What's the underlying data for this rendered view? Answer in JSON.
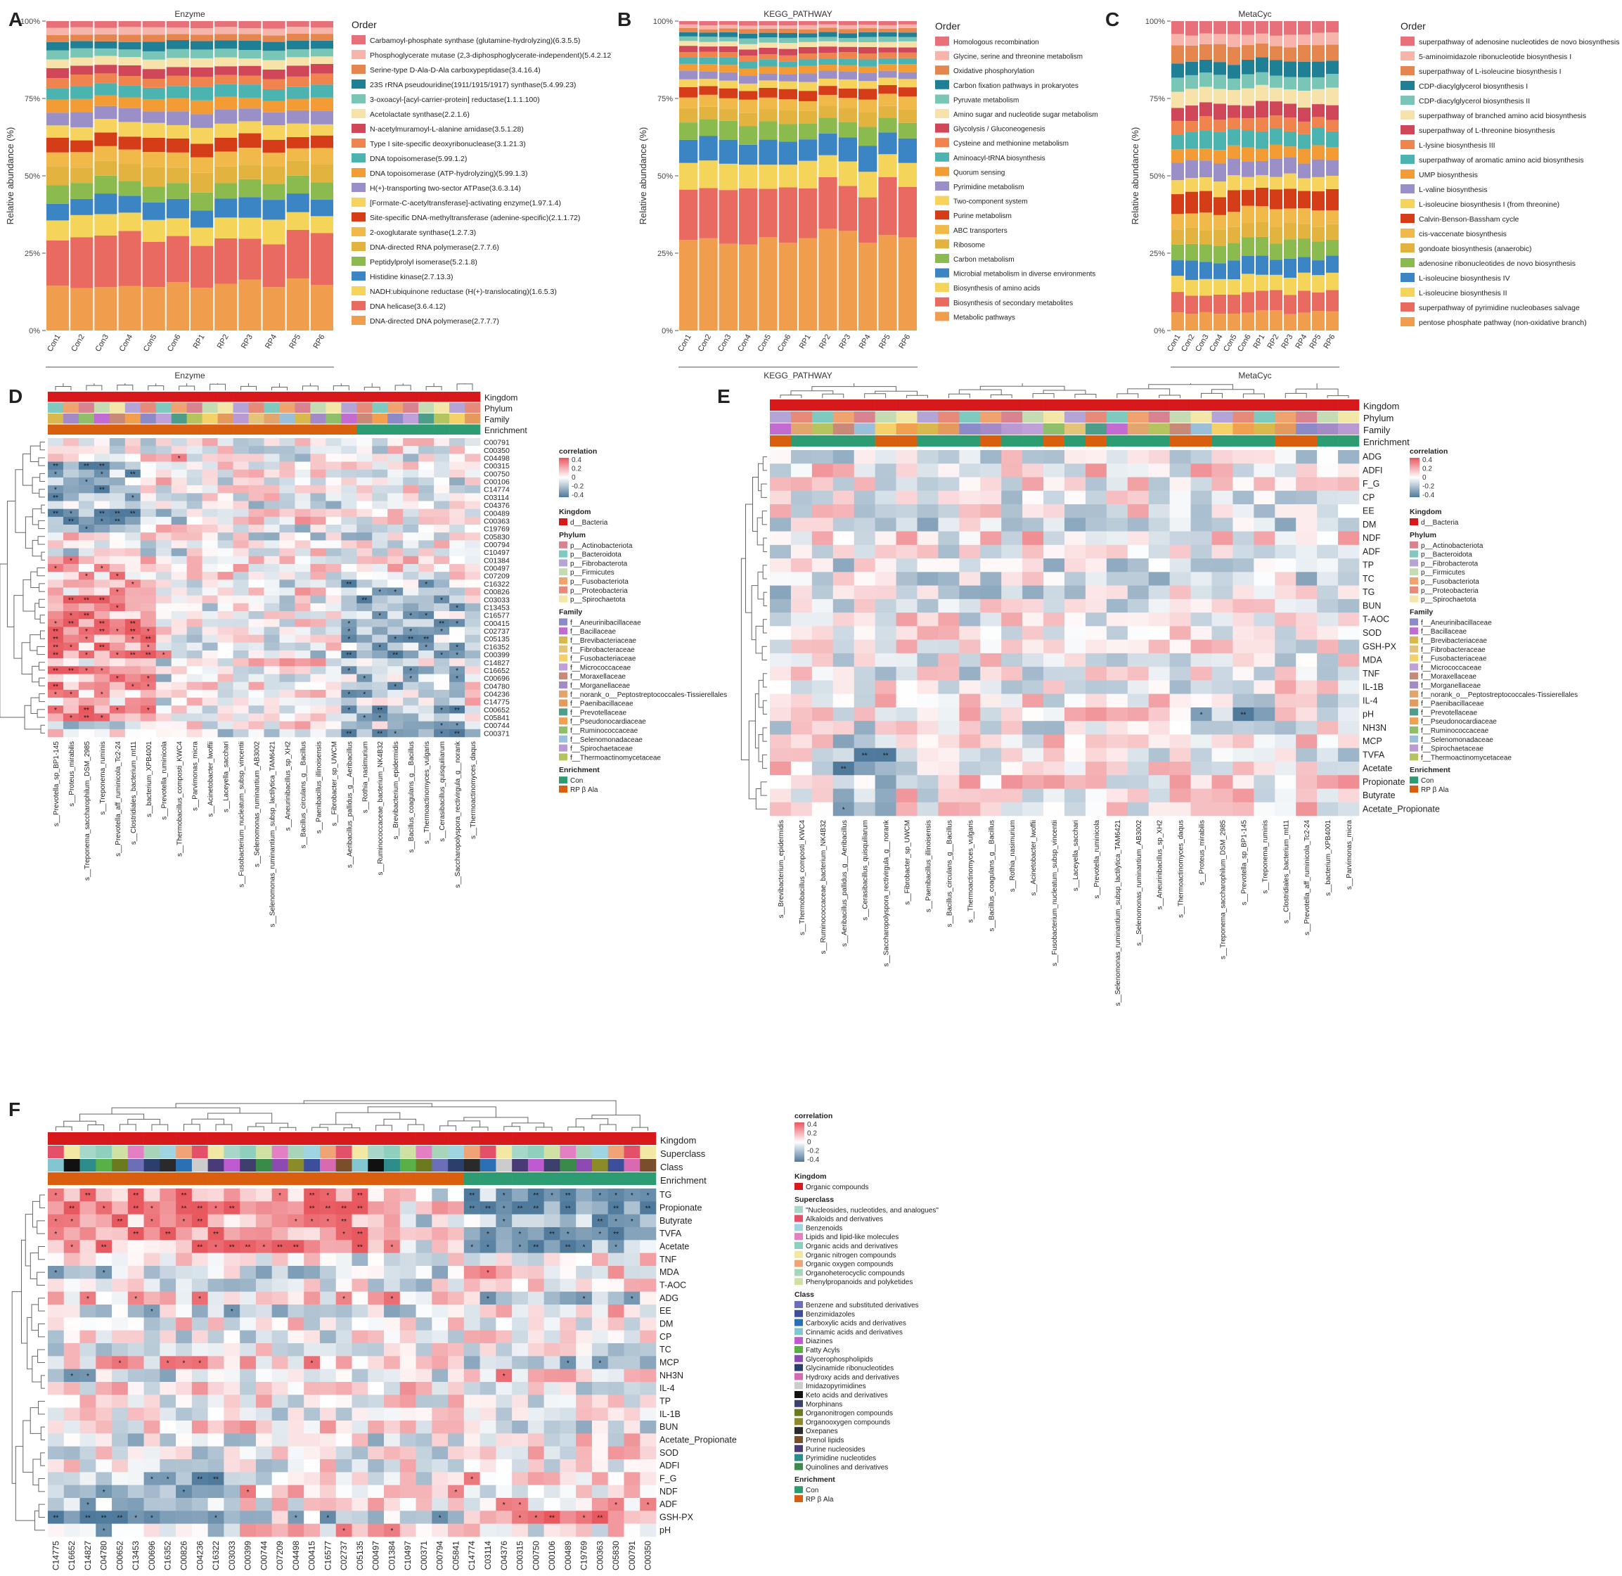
{
  "panel_letters": [
    "A",
    "B",
    "C",
    "D",
    "E",
    "F"
  ],
  "panelA": {
    "title": "Enzyme",
    "xlabel": "Enzyme",
    "ylabel": "Relative abundance (%)",
    "legend_title": "Order",
    "samples": [
      "Con1",
      "Con2",
      "Con3",
      "Con4",
      "Con5",
      "Con6",
      "RP1",
      "RP2",
      "RP3",
      "RP4",
      "RP5",
      "RP6"
    ],
    "yticks": [
      "0%",
      "25%",
      "50%",
      "75%",
      "100%"
    ],
    "legend": [
      "Carbamoyl-phosphate synthase (glutamine-hydrolyzing)(6.3.5.5)",
      "Phosphoglycerate mutase (2,3-diphosphoglycerate-independent)(5.4.2.12)",
      "Serine-type D-Ala-D-Ala carboxypeptidase(3.4.16.4)",
      "23S rRNA pseudouridine(1911/1915/1917) synthase(5.4.99.23)",
      "3-oxoacyl-[acyl-carrier-protein] reductase(1.1.1.100)",
      "Acetolactate synthase(2.2.1.6)",
      "N-acetylmuramoyl-L-alanine amidase(3.5.1.28)",
      "Type I site-specific deoxyribonuclease(3.1.21.3)",
      "DNA topoisomerase(5.99.1.2)",
      "DNA topoisomerase (ATP-hydrolyzing)(5.99.1.3)",
      "H(+)-transporting two-sector ATPase(3.6.3.14)",
      "[Formate-C-acetyltransferase]-activating enzyme(1.97.1.4)",
      "Site-specific DNA-methyltransferase (adenine-specific)(2.1.1.72)",
      "2-oxoglutarate synthase(1.2.7.3)",
      "DNA-directed RNA polymerase(2.7.7.6)",
      "Peptidylprolyl isomerase(5.2.1.8)",
      "Histidine kinase(2.7.13.3)",
      "NADH:ubiquinone reductase (H(+)-translocating)(1.6.5.3)",
      "DNA helicase(3.6.4.12)",
      "DNA-directed DNA polymerase(2.7.7.7)"
    ]
  },
  "panelB": {
    "title": "KEGG_PATHWAY",
    "xlabel": "KEGG_PATHWAY",
    "ylabel": "Relative abundance (%)",
    "legend_title": "Order",
    "samples": [
      "Con1",
      "Con2",
      "Con3",
      "Con4",
      "Con5",
      "Con6",
      "RP1",
      "RP2",
      "RP3",
      "RP4",
      "RP5",
      "RP6"
    ],
    "yticks": [
      "0%",
      "25%",
      "50%",
      "75%",
      "100%"
    ],
    "legend": [
      "Homologous recombination",
      "Glycine, serine and threonine metabolism",
      "Oxidative phosphorylation",
      "Carbon fixation pathways in prokaryotes",
      "Pyruvate metabolism",
      "Amino sugar and nucleotide sugar metabolism",
      "Glycolysis / Gluconeogenesis",
      "Cysteine and methionine metabolism",
      "Aminoacyl-tRNA biosynthesis",
      "Quorum sensing",
      "Pyrimidine metabolism",
      "Two-component system",
      "Purine metabolism",
      "ABC transporters",
      "Ribosome",
      "Carbon metabolism",
      "Microbial metabolism in diverse environments",
      "Biosynthesis of amino acids",
      "Biosynthesis of secondary metabolites",
      "Metabolic pathways"
    ]
  },
  "panelC": {
    "title": "MetaCyc",
    "xlabel": "MetaCyc",
    "ylabel": "Relative abundance (%)",
    "legend_title": "Order",
    "samples": [
      "Con1",
      "Con2",
      "Con3",
      "Con4",
      "Con5",
      "Con6",
      "RP1",
      "RP2",
      "RP3",
      "RP4",
      "RP5",
      "RP6"
    ],
    "yticks": [
      "0%",
      "25%",
      "50%",
      "75%",
      "100%"
    ],
    "legend": [
      "superpathway of adenosine nucleotides de novo biosynthesis I",
      "5-aminoimidazole ribonucleotide biosynthesis I",
      "superpathway of L-isoleucine biosynthesis I",
      "CDP-diacylglycerol biosynthesis I",
      "CDP-diacylglycerol biosynthesis II",
      "superpathway of branched amino acid biosynthesis",
      "superpathway of L-threonine biosynthesis",
      "L-lysine biosynthesis III",
      "superpathway of aromatic amino acid biosynthesis",
      "UMP biosynthesis",
      "L-valine biosynthesis",
      "L-isoleucine biosynthesis I (from threonine)",
      "Calvin-Benson-Bassham cycle",
      "cis-vaccenate biosynthesis",
      "gondoate biosynthesis (anaerobic)",
      "adenosine ribonucleotides de novo biosynthesis",
      "L-isoleucine biosynthesis IV",
      "L-isoleucine biosynthesis II",
      "superpathway of pyrimidine nucleobases salvage",
      "pentose phosphate pathway (non-oxidative branch)"
    ]
  },
  "palette20": [
    "#e8707a",
    "#f6b4ab",
    "#e4864d",
    "#1f7f95",
    "#79c6b7",
    "#f7e3a9",
    "#d0475a",
    "#f0844e",
    "#4bb3b0",
    "#f39b35",
    "#9a8fc7",
    "#f6d35c",
    "#d53d18",
    "#f0b949",
    "#e2b43f",
    "#8bbb4f",
    "#3c85c4",
    "#f5d45a",
    "#e96a60",
    "#f09e4d"
  ],
  "panelD": {
    "annot_labels": [
      "Kingdom",
      "Phylum",
      "Family",
      "Enrichment"
    ],
    "rows": [
      "C00791",
      "C00350",
      "C04498",
      "C00315",
      "C00750",
      "C00106",
      "C14774",
      "C03114",
      "C04376",
      "C00489",
      "C00363",
      "C19769",
      "C05830",
      "C00794",
      "C10497",
      "C01384",
      "C00497",
      "C07209",
      "C16322",
      "C00826",
      "C03033",
      "C13453",
      "C16577",
      "C00415",
      "C02737",
      "C05135",
      "C16352",
      "C00399",
      "C14827",
      "C16652",
      "C00696",
      "C04780",
      "C04236",
      "C14775",
      "C00652",
      "C05841",
      "C00744",
      "C00371"
    ],
    "cols": [
      "s__Prevotella_sp_BP1-145",
      "s__Proteus_mirabilis",
      "s__Treponema_saccharophilum_DSM_2985",
      "s__Treponema_ruminis",
      "s__Prevotella_aff_ruminicola_Tc2-24",
      "s__Clostridiales_bacterium_mt11",
      "s__bacterium_XPB4001",
      "s__Prevotella_ruminicola",
      "s__Thermobacillus_composti_KWC4",
      "s__Parvimonas_micra",
      "s__Acinetobacter_lwoffii",
      "s__Laceyella_sacchari",
      "s__Fusobacterium_nucleatum_subsp_vincentii",
      "s__Selenomonas_ruminantium_AB3002",
      "s__Selenomonas_ruminantium_subsp_lactilytica_TAM6421",
      "s__Aneurinibacillus_sp_XH2",
      "s__Bacillus_circulans_g__Bacillus",
      "s__Paenibacillus_illinoisensis",
      "s__Fibrobacter_sp_UWCM",
      "s__Aeribacillus_pallidus_g__Aeribacillus",
      "s__Rothia_nasimurium",
      "s__Ruminococcaceae_bacterium_NK4B32",
      "s__Brevibacterium_epidermidis",
      "s__Bacillus_coagulans_g__Bacillus",
      "s__Thermoactinomyces_vulgaris",
      "s__Cerasibacillus_quisquiliarum",
      "s__Saccharopolyspora_rectivirgula_g__norank",
      "s__Thermoactinomyces_daqus"
    ],
    "legend": {
      "corr_title": "correlation",
      "corr_ticks": [
        "0.4",
        "0.2",
        "0",
        "-0.2",
        "-0.4"
      ],
      "kingdom_title": "Kingdom",
      "kingdom": [
        "d__Bacteria"
      ],
      "phylum_title": "Phylum",
      "phylum": [
        "p__Actinobacteriota",
        "p__Bacteroidota",
        "p__Fibrobacterota",
        "p__Firmicutes",
        "p__Fusobacteriota",
        "p__Proteobacteria",
        "p__Spirochaetota"
      ],
      "family_title": "Family",
      "family": [
        "f__Aneurinibacillaceae",
        "f__Bacillaceae",
        "f__Brevibacteriaceae",
        "f__Fibrobacteraceae",
        "f__Fusobacteriaceae",
        "f__Micrococcaceae",
        "f__Moraxellaceae",
        "f__Morganellaceae",
        "f__norank_o__Peptostreptococcales-Tissierellales",
        "f__Paenibacillaceae",
        "f__Prevotellaceae",
        "f__Pseudonocardiaceae",
        "f__Ruminococcaceae",
        "f__Selenomonadaceae",
        "f__Spirochaetaceae",
        "f__Thermoactinomycetaceae"
      ],
      "enrich_title": "Enrichment",
      "enrich": [
        "Con",
        "RP β Ala"
      ]
    }
  },
  "panelE": {
    "annot_labels": [
      "Kingdom",
      "Phylum",
      "Family",
      "Enrichment"
    ],
    "rows": [
      "ADG",
      "ADFI",
      "F_G",
      "CP",
      "EE",
      "DM",
      "NDF",
      "ADF",
      "TP",
      "TC",
      "TG",
      "BUN",
      "T-AOC",
      "SOD",
      "GSH-PX",
      "MDA",
      "TNF",
      "IL-1B",
      "IL-4",
      "pH",
      "NH3N",
      "MCP",
      "TVFA",
      "Acetate",
      "Propionate",
      "Butyrate",
      "Acetate_Propionate"
    ],
    "cols": [
      "s__Brevibacterium_epidermidis",
      "s__Thermobacillus_composti_KWC4",
      "s__Ruminococcaceae_bacterium_NK4B32",
      "s__Aeribacillus_pallidus_g__Aeribacillus",
      "s__Cerasibacillus_quisquiliarum",
      "s__Saccharopolyspora_rectivirgula_g__norank",
      "s__Fibrobacter_sp_UWCM",
      "s__Paenibacillus_illinoisensis",
      "s__Bacillus_circulans_g__Bacillus",
      "s__Thermoactinomyces_vulgaris",
      "s__Bacillus_coagulans_g__Bacillus",
      "s__Rothia_nasimurium",
      "s__Acinetobacter_lwoffii",
      "s__Fusobacterium_nucleatum_subsp_vincentii",
      "s__Laceyella_sacchari",
      "s__Prevotella_ruminicola",
      "s__Selenomonas_ruminantium_subsp_lactilytica_TAM6421",
      "s__Selenomonas_ruminantium_AB3002",
      "s__Aneurinibacillus_sp_XH2",
      "s__Thermoactinomyces_daqus",
      "s__Proteus_mirabilis",
      "s__Treponema_saccharophilum_DSM_2985",
      "s__Prevotella_sp_BP1-145",
      "s__Treponema_ruminis",
      "s__Clostridiales_bacterium_mt11",
      "s__Prevotella_aff_ruminicola_Tc2-24",
      "s__bacterium_XPB4001",
      "s__Parvimonas_micra"
    ],
    "legend": {
      "corr_title": "correlation",
      "corr_ticks": [
        "0.4",
        "0.2",
        "0",
        "-0.2",
        "-0.4"
      ],
      "kingdom_title": "Kingdom",
      "kingdom": [
        "d__Bacteria"
      ],
      "phylum_title": "Phylum",
      "phylum": [
        "p__Actinobacteriota",
        "p__Bacteroidota",
        "p__Fibrobacterota",
        "p__Firmicutes",
        "p__Fusobacteriota",
        "p__Proteobacteria",
        "p__Spirochaetota"
      ],
      "family_title": "Family",
      "family": [
        "f__Aneurinibacillaceae",
        "f__Bacillaceae",
        "f__Brevibacteriaceae",
        "f__Fibrobacteraceae",
        "f__Fusobacteriaceae",
        "f__Micrococcaceae",
        "f__Moraxellaceae",
        "f__Morganellaceae",
        "f__norank_o__Peptostreptococcales-Tissierellales",
        "f__Paenibacillaceae",
        "f__Prevotellaceae",
        "f__Pseudonocardiaceae",
        "f__Ruminococcaceae",
        "f__Selenomonadaceae",
        "f__Spirochaetaceae",
        "f__Thermoactinomycetaceae"
      ],
      "enrich_title": "Enrichment",
      "enrich": [
        "Con",
        "RP β Ala"
      ]
    }
  },
  "panelF": {
    "annot_labels": [
      "Kingdom",
      "Superclass",
      "Class",
      "Enrichment"
    ],
    "rows": [
      "TG",
      "Propionate",
      "Butyrate",
      "TVFA",
      "Acetate",
      "TNF",
      "MDA",
      "T-AOC",
      "ADG",
      "EE",
      "DM",
      "CP",
      "TC",
      "MCP",
      "NH3N",
      "IL-4",
      "TP",
      "IL-1B",
      "BUN",
      "Acetate_Propionate",
      "SOD",
      "ADFI",
      "F_G",
      "NDF",
      "ADF",
      "GSH-PX",
      "pH"
    ],
    "cols": [
      "C14775",
      "C16652",
      "C14827",
      "C04780",
      "C00652",
      "C13453",
      "C00696",
      "C16352",
      "C00826",
      "C04236",
      "C16322",
      "C03033",
      "C00399",
      "C00744",
      "C07209",
      "C04498",
      "C00415",
      "C16577",
      "C02737",
      "C05135",
      "C00497",
      "C01384",
      "C10497",
      "C00371",
      "C00794",
      "C05841",
      "C14774",
      "C03114",
      "C04376",
      "C00315",
      "C00750",
      "C00106",
      "C00489",
      "C19769",
      "C00363",
      "C05830",
      "C00791",
      "C00350"
    ],
    "legend": {
      "corr_title": "correlation",
      "corr_ticks": [
        "0.4",
        "0.2",
        "0",
        "-0.2",
        "-0.4"
      ],
      "kingdom_title": "Kingdom",
      "kingdom": [
        "Organic compounds"
      ],
      "superclass_title": "Superclass",
      "superclass": [
        "\"Nucleosides, nucleotides, and analogues\"",
        "Alkaloids and derivatives",
        "Benzenoids",
        "Lipids and lipid-like molecules",
        "Organic acids and derivatives",
        "Organic nitrogen compounds",
        "Organic oxygen compounds",
        "Organoheterocyclic compounds",
        "Phenylpropanoids and polyketides"
      ],
      "class_title": "Class",
      "class": [
        "Benzene and substituted derivatives",
        "Benzimidazoles",
        "Carboxylic acids and derivatives",
        "Cinnamic acids and derivatives",
        "Diazines",
        "Fatty Acyls",
        "Glycerophospholipids",
        "Glycinamide ribonucleotides",
        "Hydroxy acids and derivatives",
        "Imidazopyrimidines",
        "Keto acids and derivatives",
        "Morphinans",
        "Organonitrogen compounds",
        "Organooxygen compounds",
        "Oxepanes",
        "Prenol lipids",
        "Purine nucleosides",
        "Pyrimidine nucleotides",
        "Quinolines and derivatives"
      ],
      "enrich_title": "Enrichment",
      "enrich": [
        "Con",
        "RP β Ala"
      ]
    }
  },
  "colors": {
    "kingdom_red": "#d7191c",
    "con": "#2e9c73",
    "rp": "#d95f0e",
    "pos": "#e8585f",
    "neg": "#4f7a9c"
  }
}
